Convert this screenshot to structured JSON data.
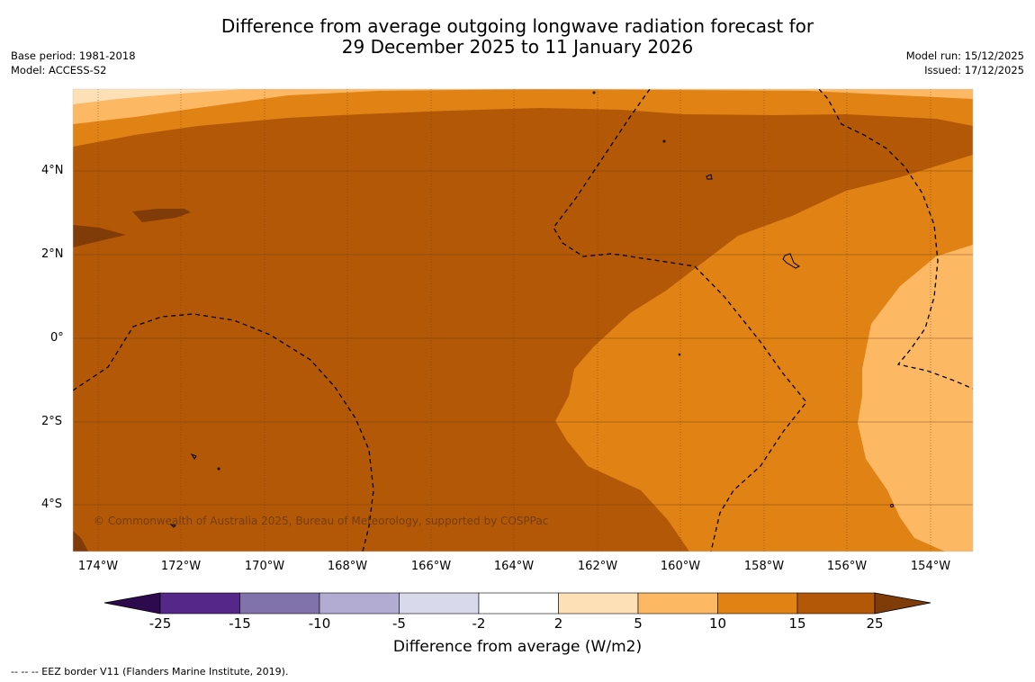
{
  "title": {
    "line1": "Difference from average outgoing longwave radiation forecast for",
    "line2": "29 December 2025 to 11 January 2026"
  },
  "meta_left": {
    "base_period": "Base period: 1981-2018",
    "model": "Model: ACCESS-S2"
  },
  "meta_right": {
    "model_run": "Model run: 15/12/2025",
    "issued": "Issued: 17/12/2025"
  },
  "map": {
    "lat_labels": [
      "4°N",
      "2°N",
      "0°",
      "2°S",
      "4°S"
    ],
    "lon_labels": [
      "174°W",
      "172°W",
      "170°W",
      "168°W",
      "166°W",
      "164°W",
      "162°W",
      "160°W",
      "158°W",
      "156°W",
      "154°W"
    ],
    "copyright": "© Commonwealth of Australia 2025, Bureau of Meteorology, supported by COSPPac"
  },
  "colorbar": {
    "ticks": [
      "-25",
      "-15",
      "-10",
      "-5",
      "-2",
      "2",
      "5",
      "10",
      "15",
      "25"
    ],
    "colors": [
      "#2d0a4e",
      "#542788",
      "#8073ac",
      "#b2abd2",
      "#d8daeb",
      "#ffffff",
      "#fee0b6",
      "#fdb863",
      "#e08214",
      "#b35806",
      "#7f3b08"
    ],
    "label": "Difference from average (W/m2)"
  },
  "legend": {
    "eez": "--  --  -- EEZ border V11 (Flanders Marine Institute, 2019)."
  },
  "palette": {
    "dark_brown": "#7f3b08",
    "brown": "#b35806",
    "orange": "#e08214",
    "light_orange": "#fdb863",
    "pale": "#fee0b6"
  }
}
